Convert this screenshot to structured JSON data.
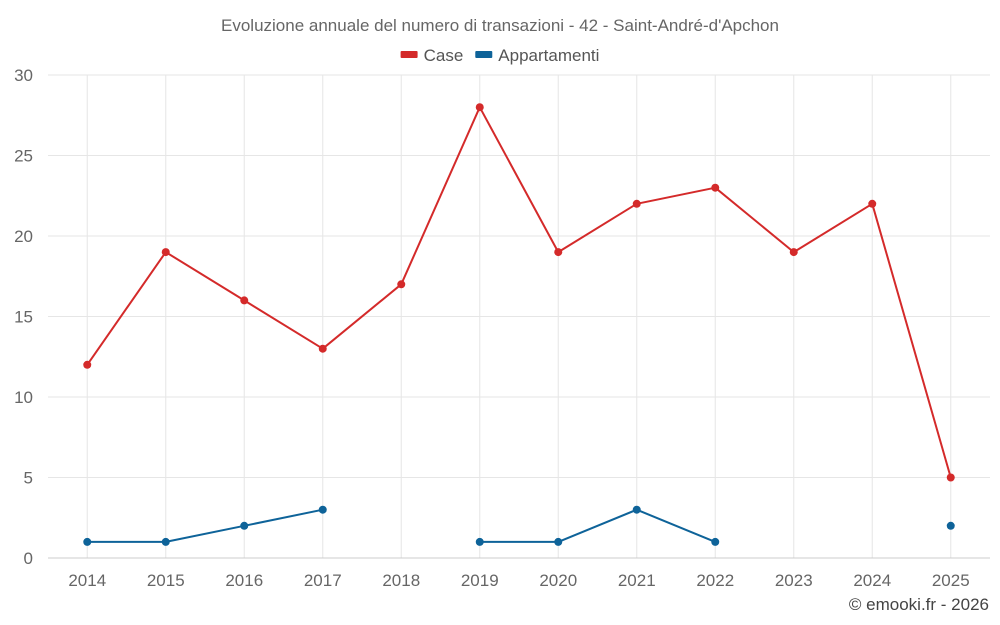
{
  "chart_data": {
    "type": "line",
    "title": "Evoluzione annuale del numero di transazioni - 42 - Saint-André-d'Apchon",
    "categories": [
      "2014",
      "2015",
      "2016",
      "2017",
      "2018",
      "2019",
      "2020",
      "2021",
      "2022",
      "2023",
      "2024",
      "2025"
    ],
    "ylim": [
      0,
      30
    ],
    "yticks": [
      0,
      5,
      10,
      15,
      20,
      25,
      30
    ],
    "legend_position": "top-center",
    "grid": true,
    "series": [
      {
        "name": "Case",
        "color": "#d42a2a",
        "values": [
          12,
          19,
          16,
          13,
          17,
          28,
          19,
          22,
          23,
          19,
          22,
          5
        ]
      },
      {
        "name": "Appartamenti",
        "color": "#0e6399",
        "values": [
          1,
          1,
          2,
          3,
          null,
          1,
          1,
          3,
          1,
          null,
          null,
          2
        ]
      }
    ],
    "credit": "© emooki.fr - 2026"
  }
}
